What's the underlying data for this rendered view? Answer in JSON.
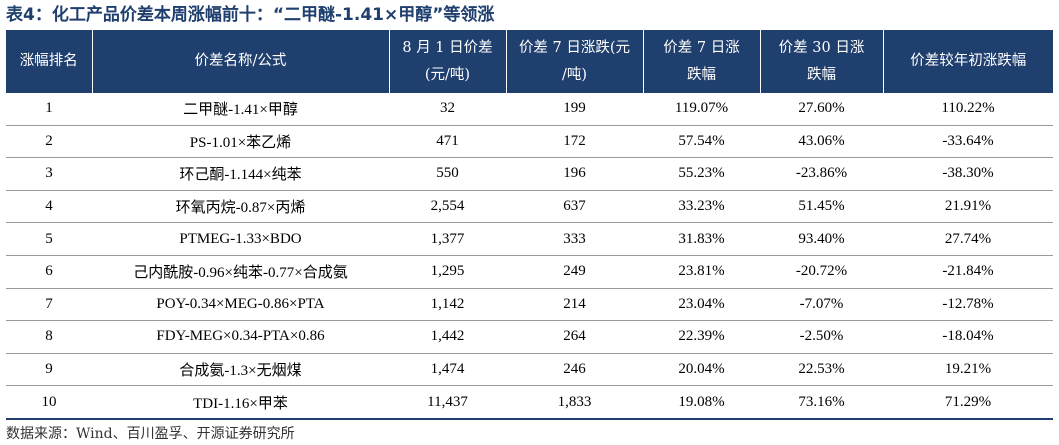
{
  "title": "表4：化工产品价差本周涨幅前十：“二甲醚-1.41×甲醇”等领涨",
  "table": {
    "headers": [
      {
        "line1": "涨幅排名",
        "line2": ""
      },
      {
        "line1": "价差名称/公式",
        "line2": ""
      },
      {
        "line1": "8 月 1 日价差",
        "line2": "(元/吨)"
      },
      {
        "line1": "价差 7 日涨跌(元",
        "line2": "/吨)"
      },
      {
        "line1": "价差 7 日涨",
        "line2": "跌幅"
      },
      {
        "line1": "价差 30 日涨",
        "line2": "跌幅"
      },
      {
        "line1": "价差较年初涨跌幅",
        "line2": ""
      }
    ],
    "rows": [
      {
        "rank": "1",
        "name": "二甲醚-1.41×甲醇",
        "spread": "32",
        "chg7": "199",
        "pct7": "119.07%",
        "pct30": "27.60%",
        "ytd": "110.22%"
      },
      {
        "rank": "2",
        "name": "PS-1.01×苯乙烯",
        "spread": "471",
        "chg7": "172",
        "pct7": "57.54%",
        "pct30": "43.06%",
        "ytd": "-33.64%"
      },
      {
        "rank": "3",
        "name": "环己酮-1.144×纯苯",
        "spread": "550",
        "chg7": "196",
        "pct7": "55.23%",
        "pct30": "-23.86%",
        "ytd": "-38.30%"
      },
      {
        "rank": "4",
        "name": "环氧丙烷-0.87×丙烯",
        "spread": "2,554",
        "chg7": "637",
        "pct7": "33.23%",
        "pct30": "51.45%",
        "ytd": "21.91%"
      },
      {
        "rank": "5",
        "name": "PTMEG-1.33×BDO",
        "spread": "1,377",
        "chg7": "333",
        "pct7": "31.83%",
        "pct30": "93.40%",
        "ytd": "27.74%"
      },
      {
        "rank": "6",
        "name": "己内酰胺-0.96×纯苯-0.77×合成氨",
        "spread": "1,295",
        "chg7": "249",
        "pct7": "23.81%",
        "pct30": "-20.72%",
        "ytd": "-21.84%"
      },
      {
        "rank": "7",
        "name": "POY-0.34×MEG-0.86×PTA",
        "spread": "1,142",
        "chg7": "214",
        "pct7": "23.04%",
        "pct30": "-7.07%",
        "ytd": "-12.78%"
      },
      {
        "rank": "8",
        "name": "FDY-MEG×0.34-PTA×0.86",
        "spread": "1,442",
        "chg7": "264",
        "pct7": "22.39%",
        "pct30": "-2.50%",
        "ytd": "-18.04%"
      },
      {
        "rank": "9",
        "name": "合成氨-1.3×无烟煤",
        "spread": "1,474",
        "chg7": "246",
        "pct7": "20.04%",
        "pct30": "22.53%",
        "ytd": "19.21%"
      },
      {
        "rank": "10",
        "name": "TDI-1.16×甲苯",
        "spread": "11,437",
        "chg7": "1,833",
        "pct7": "19.08%",
        "pct30": "73.16%",
        "ytd": "71.29%"
      }
    ]
  },
  "source": "数据来源：Wind、百川盈孚、开源证券研究所",
  "colors": {
    "title": "#1f3f6e",
    "header_bg": "#1f3f6e",
    "header_text": "#ffffff",
    "row_rule": "#9a9a9a"
  }
}
